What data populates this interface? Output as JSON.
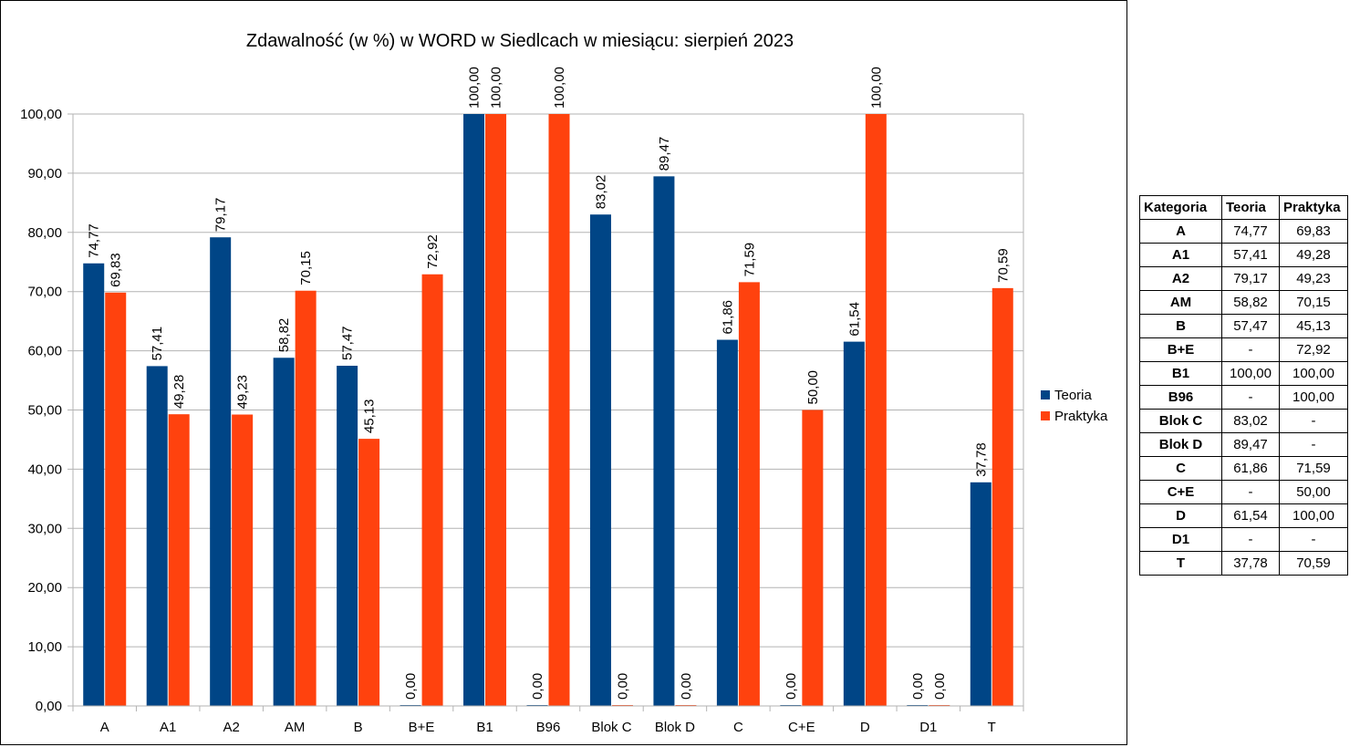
{
  "chart_data": {
    "type": "bar",
    "title": "Zdawalność (w %) w WORD w Siedlcach w miesiącu: sierpień 2023",
    "categories": [
      "A",
      "A1",
      "A2",
      "AM",
      "B",
      "B+E",
      "B1",
      "B96",
      "Blok C",
      "Blok D",
      "C",
      "C+E",
      "D",
      "D1",
      "T"
    ],
    "series": [
      {
        "name": "Teoria",
        "color": "#004586",
        "values": [
          74.77,
          57.41,
          79.17,
          58.82,
          57.47,
          0,
          100,
          0,
          83.02,
          89.47,
          61.86,
          0,
          61.54,
          0,
          37.78
        ],
        "labels": [
          "74,77",
          "57,41",
          "79,17",
          "58,82",
          "57,47",
          "0,00",
          "100,00",
          "0,00",
          "83,02",
          "89,47",
          "61,86",
          "0,00",
          "61,54",
          "0,00",
          "37,78"
        ]
      },
      {
        "name": "Praktyka",
        "color": "#ff420e",
        "values": [
          69.83,
          49.28,
          49.23,
          70.15,
          45.13,
          72.92,
          100,
          100,
          0,
          0,
          71.59,
          50,
          100,
          0,
          70.59
        ],
        "labels": [
          "69,83",
          "49,28",
          "49,23",
          "70,15",
          "45,13",
          "72,92",
          "100,00",
          "100,00",
          "0,00",
          "0,00",
          "71,59",
          "50,00",
          "100,00",
          "0,00",
          "70,59"
        ]
      }
    ],
    "ylim": [
      0,
      100
    ],
    "yticks": [
      "0,00",
      "10,00",
      "20,00",
      "30,00",
      "40,00",
      "50,00",
      "60,00",
      "70,00",
      "80,00",
      "90,00",
      "100,00"
    ],
    "grid": true,
    "legend": "right"
  },
  "table": {
    "headers": [
      "Kategoria",
      "Teoria",
      "Praktyka"
    ],
    "rows": [
      [
        "A",
        "74,77",
        "69,83"
      ],
      [
        "A1",
        "57,41",
        "49,28"
      ],
      [
        "A2",
        "79,17",
        "49,23"
      ],
      [
        "AM",
        "58,82",
        "70,15"
      ],
      [
        "B",
        "57,47",
        "45,13"
      ],
      [
        "B+E",
        "-",
        "72,92"
      ],
      [
        "B1",
        "100,00",
        "100,00"
      ],
      [
        "B96",
        "-",
        "100,00"
      ],
      [
        "Blok C",
        "83,02",
        "-"
      ],
      [
        "Blok D",
        "89,47",
        "-"
      ],
      [
        "C",
        "61,86",
        "71,59"
      ],
      [
        "C+E",
        "-",
        "50,00"
      ],
      [
        "D",
        "61,54",
        "100,00"
      ],
      [
        "D1",
        "-",
        "-"
      ],
      [
        "T",
        "37,78",
        "70,59"
      ]
    ]
  }
}
